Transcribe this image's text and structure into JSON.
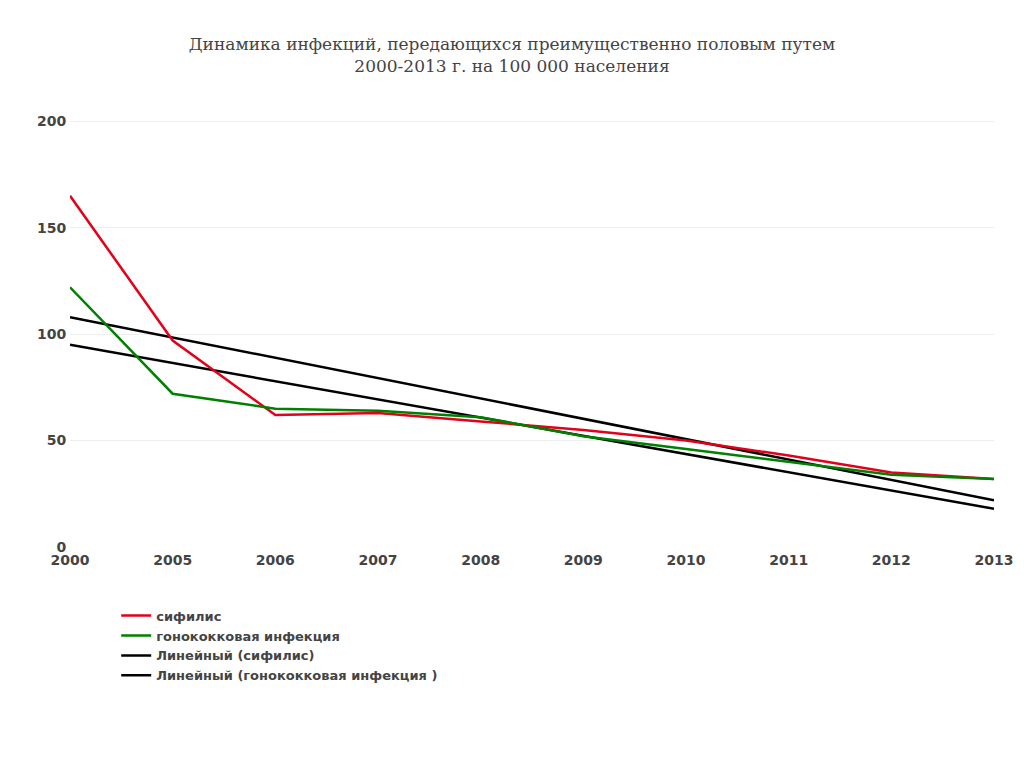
{
  "chart_data": {
    "type": "line",
    "title": "Динамика инфекций, передающихся преимущественно половым путем\n2000-2013 г. на 100 000 населения",
    "categories": [
      "2000",
      "2005",
      "2006",
      "2007",
      "2008",
      "2009",
      "2010",
      "2011",
      "2012",
      "2013"
    ],
    "series": [
      {
        "name": "сифилис",
        "color": "#e2001a",
        "values": [
          165,
          97,
          62,
          63,
          59,
          55,
          50,
          43,
          35,
          32
        ]
      },
      {
        "name": "гонококковая инфекция",
        "color": "#008000",
        "values": [
          122,
          72,
          65,
          64,
          61,
          52,
          46,
          40,
          34,
          32
        ]
      },
      {
        "name": "Линейный (сифилис)",
        "color": "#000000",
        "x": [
          "2000",
          "2013"
        ],
        "values": [
          108,
          22
        ]
      },
      {
        "name": "Линейный (гонококковая инфекция )",
        "color": "#000000",
        "x": [
          "2000",
          "2013"
        ],
        "values": [
          95,
          18
        ]
      }
    ],
    "ylim": [
      0,
      210
    ],
    "yticks": [
      0,
      50,
      100,
      150,
      200
    ],
    "grid": true,
    "legend": "bottom"
  }
}
